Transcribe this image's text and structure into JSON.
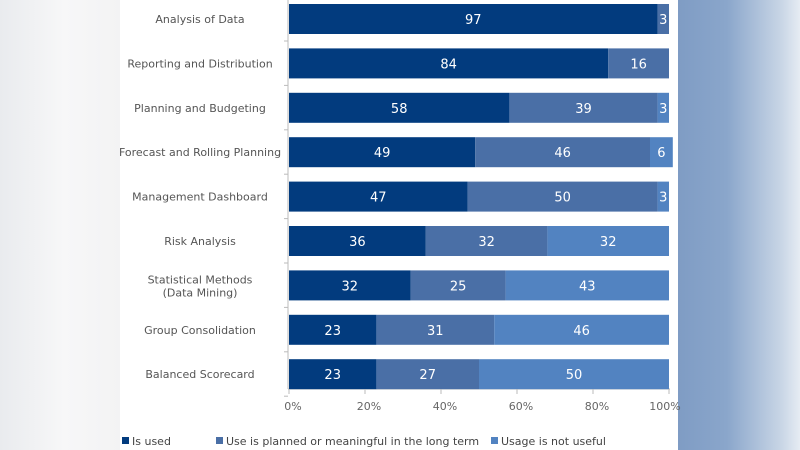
{
  "chart_data": {
    "type": "bar",
    "orientation": "horizontal",
    "stacked": "percent",
    "categories": [
      "Analysis of Data",
      "Reporting and Distribution",
      "Planning and Budgeting",
      "Forecast and Rolling Planning",
      "Management Dashboard",
      "Risk Analysis",
      "Statistical Methods\n(Data Mining)",
      "Group Consolidation",
      "Balanced Scorecard"
    ],
    "series": [
      {
        "name": "Is used",
        "color": "#023b7e",
        "values": [
          97,
          84,
          58,
          49,
          47,
          36,
          32,
          23,
          23
        ]
      },
      {
        "name": "Use is planned or meaningful in the long term",
        "color": "#4a6fa6",
        "values": [
          3,
          16,
          39,
          46,
          50,
          32,
          25,
          31,
          27
        ]
      },
      {
        "name": "Usage is not useful",
        "color": "#5283c1",
        "values": [
          0,
          0,
          3,
          6,
          3,
          32,
          43,
          46,
          50
        ]
      }
    ],
    "xlim": [
      0,
      100
    ],
    "xticks": [
      "0%",
      "20%",
      "40%",
      "60%",
      "80%",
      "100%"
    ],
    "grid": false,
    "legend_position": "bottom"
  }
}
